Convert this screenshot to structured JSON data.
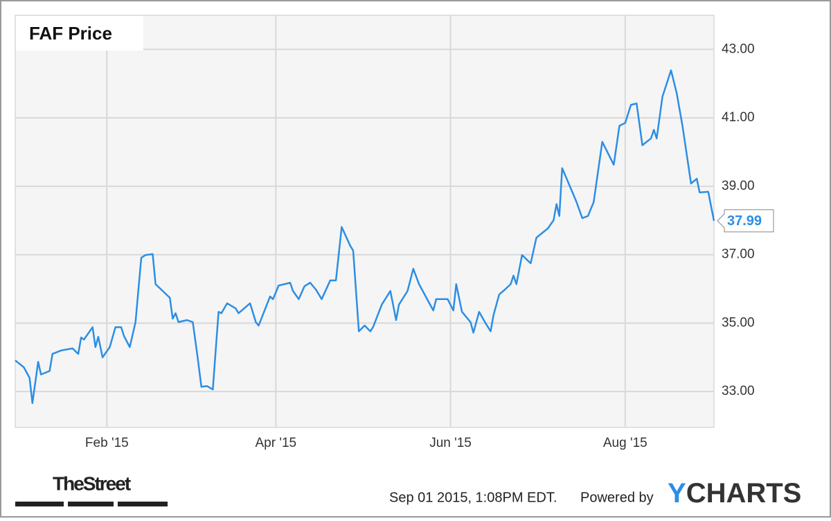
{
  "chart_data": {
    "type": "line",
    "title": "FAF Price",
    "x": [
      0,
      3,
      5,
      6,
      8,
      9,
      12,
      13,
      16,
      20,
      22,
      23,
      24,
      27,
      28,
      29,
      30.5,
      33,
      35,
      37,
      38,
      40,
      42,
      44,
      45.5,
      48,
      49,
      51,
      54,
      55,
      56,
      57,
      60,
      62,
      63.5,
      65,
      67,
      69,
      71,
      72,
      74,
      77,
      78,
      82,
      84,
      85,
      89,
      90,
      92,
      96,
      97,
      99,
      101,
      103,
      105,
      107,
      110,
      112,
      114,
      117,
      118,
      120,
      122,
      124,
      125,
      128,
      131,
      133,
      134,
      137,
      139,
      141,
      146,
      147,
      151,
      153,
      154,
      156,
      159,
      160,
      162,
      164,
      166,
      167,
      169,
      171,
      173,
      174,
      175,
      177,
      180,
      182,
      186,
      188,
      189,
      190,
      191,
      195,
      196,
      198,
      200,
      202,
      205,
      209,
      211,
      213,
      215,
      217,
      219,
      222,
      223,
      224,
      226,
      229,
      231,
      233,
      236,
      238,
      239,
      242,
      244
    ],
    "values": [
      33.91,
      33.71,
      33.4,
      32.66,
      33.87,
      33.5,
      33.6,
      34.1,
      34.2,
      34.26,
      34.1,
      34.58,
      34.52,
      34.88,
      34.3,
      34.6,
      34.0,
      34.3,
      34.88,
      34.88,
      34.62,
      34.3,
      35.03,
      36.91,
      36.99,
      37.02,
      36.14,
      35.98,
      35.74,
      35.13,
      35.29,
      35.03,
      35.09,
      35.03,
      34.12,
      33.14,
      33.16,
      33.06,
      35.33,
      35.29,
      35.58,
      35.43,
      35.29,
      35.58,
      35.03,
      34.93,
      35.78,
      35.7,
      36.1,
      36.18,
      35.94,
      35.7,
      36.08,
      36.18,
      35.98,
      35.7,
      36.25,
      36.25,
      37.81,
      37.26,
      37.12,
      34.76,
      34.93,
      34.76,
      34.89,
      35.54,
      35.94,
      35.09,
      35.54,
      35.94,
      36.59,
      36.14,
      35.37,
      35.7,
      35.7,
      35.37,
      36.14,
      35.33,
      35.03,
      34.72,
      35.33,
      35.03,
      34.76,
      35.23,
      35.84,
      35.98,
      36.14,
      36.39,
      36.14,
      36.99,
      36.75,
      37.5,
      37.77,
      38.01,
      38.48,
      38.13,
      39.53,
      38.74,
      38.54,
      38.07,
      38.13,
      38.54,
      40.3,
      39.63,
      40.77,
      40.85,
      41.38,
      41.42,
      40.2,
      40.4,
      40.65,
      40.4,
      41.62,
      42.39,
      41.72,
      40.77,
      39.08,
      39.22,
      38.82,
      38.84,
      37.99
    ],
    "color": "#2b8ee5",
    "xlim": [
      0,
      244
    ],
    "ylim": [
      31.95,
      44.0
    ],
    "xticks": [
      {
        "value": 32,
        "label": "Feb '15"
      },
      {
        "value": 91,
        "label": "Apr '15"
      },
      {
        "value": 152,
        "label": "Jun '15"
      },
      {
        "value": 213,
        "label": "Aug '15"
      }
    ],
    "yticks": [
      {
        "value": 33,
        "label": "33.00"
      },
      {
        "value": 35,
        "label": "35.00"
      },
      {
        "value": 37,
        "label": "37.00"
      },
      {
        "value": 39,
        "label": "39.00"
      },
      {
        "value": 41,
        "label": "41.00"
      },
      {
        "value": 43,
        "label": "43.00"
      }
    ],
    "grid": true
  },
  "footer": {
    "source_logo": "TheStreet",
    "timestamp": "Sep 01 2015, 1:08PM EDT.",
    "powered_by": "Powered by",
    "brand": [
      "Y",
      "CHARTS"
    ]
  }
}
